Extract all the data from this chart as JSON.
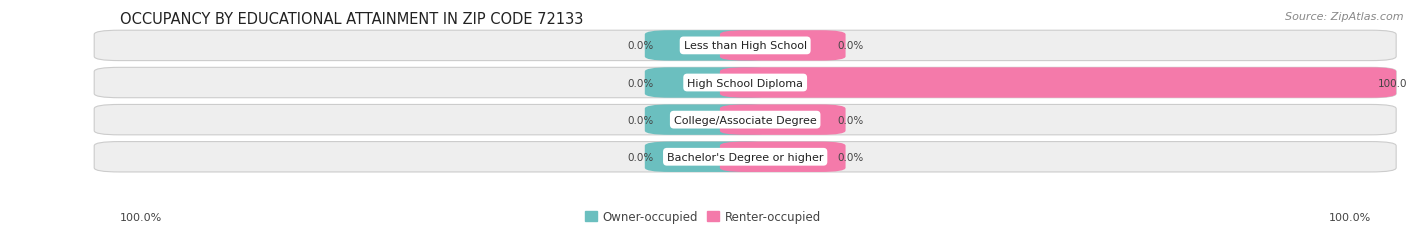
{
  "title": "OCCUPANCY BY EDUCATIONAL ATTAINMENT IN ZIP CODE 72133",
  "source": "Source: ZipAtlas.com",
  "categories": [
    "Less than High School",
    "High School Diploma",
    "College/Associate Degree",
    "Bachelor's Degree or higher"
  ],
  "owner_values": [
    0.0,
    0.0,
    0.0,
    0.0
  ],
  "renter_values": [
    0.0,
    100.0,
    0.0,
    0.0
  ],
  "owner_color": "#6bbfbf",
  "renter_color": "#f47aaa",
  "bar_bg_color": "#eeeeee",
  "bar_shadow_color": "#dddddd",
  "owner_label": "Owner-occupied",
  "renter_label": "Renter-occupied",
  "left_axis_label": "100.0%",
  "right_axis_label": "100.0%",
  "figsize": [
    14.06,
    2.32
  ],
  "dpi": 100,
  "title_fontsize": 10.5,
  "source_fontsize": 8,
  "bar_label_fontsize": 7.5,
  "category_fontsize": 8,
  "legend_fontsize": 8.5,
  "axis_label_fontsize": 8
}
